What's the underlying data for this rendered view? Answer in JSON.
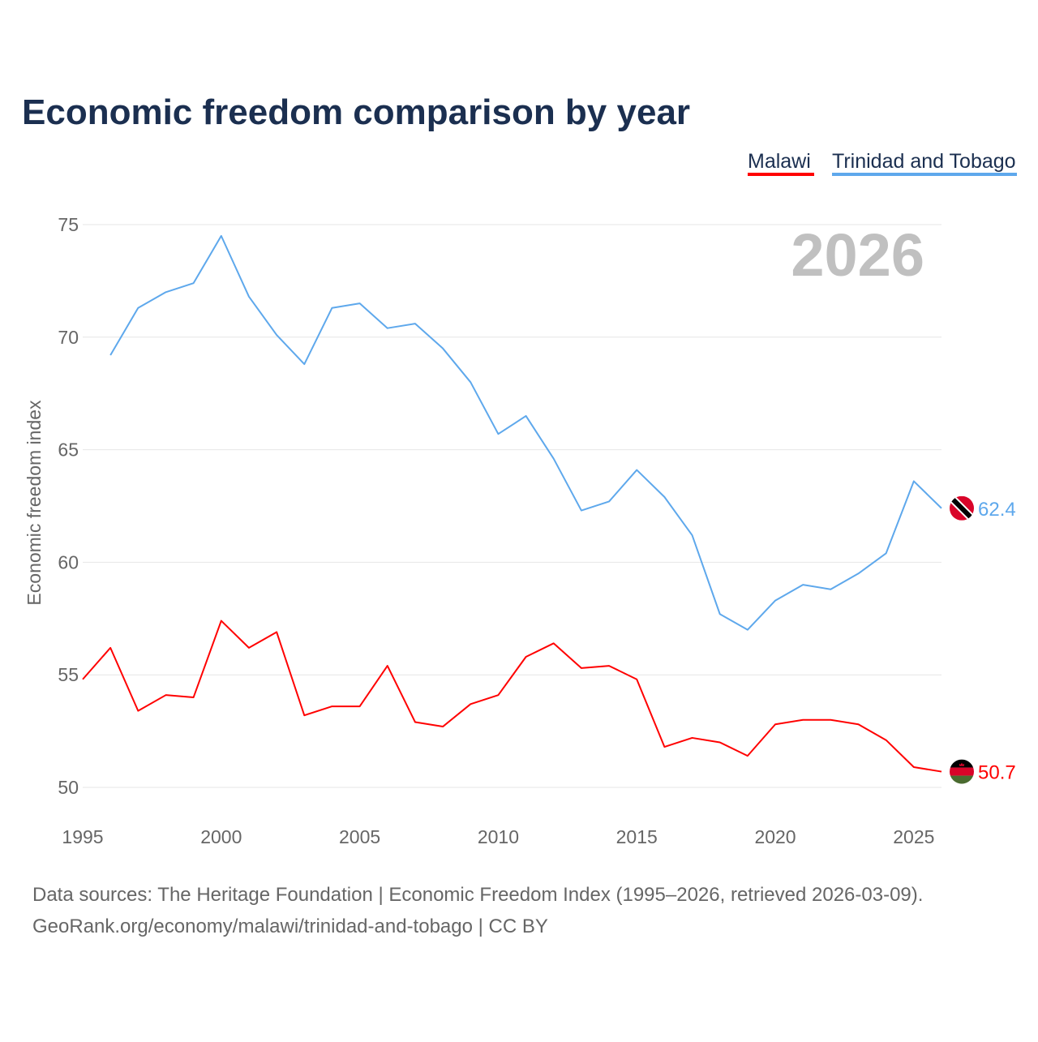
{
  "chart_data": {
    "type": "line",
    "title": "Economic freedom comparison by year",
    "ylabel": "Economic freedom index",
    "xlabel": "",
    "xlim": [
      1995,
      2026
    ],
    "ylim": [
      50,
      75
    ],
    "yticks": [
      50,
      55,
      60,
      65,
      70,
      75
    ],
    "xticks": [
      1995,
      2000,
      2005,
      2010,
      2015,
      2020,
      2025
    ],
    "grid": true,
    "legend_placement": "top-right",
    "year_watermark": "2026",
    "series": [
      {
        "name": "Malawi",
        "color": "#ff0000",
        "end_label": "50.7",
        "x": [
          1995,
          1996,
          1997,
          1998,
          1999,
          2000,
          2001,
          2002,
          2003,
          2004,
          2005,
          2006,
          2007,
          2008,
          2009,
          2010,
          2011,
          2012,
          2013,
          2014,
          2015,
          2016,
          2017,
          2018,
          2019,
          2020,
          2021,
          2022,
          2023,
          2024,
          2025,
          2026
        ],
        "values": [
          54.8,
          56.2,
          53.4,
          54.1,
          54.0,
          57.4,
          56.2,
          56.9,
          53.2,
          53.6,
          53.6,
          55.4,
          52.9,
          52.7,
          53.7,
          54.1,
          55.8,
          56.4,
          55.3,
          55.4,
          54.8,
          51.8,
          52.2,
          52.0,
          51.4,
          52.8,
          53.0,
          53.0,
          52.8,
          52.1,
          50.9,
          50.7
        ]
      },
      {
        "name": "Trinidad and Tobago",
        "color": "#5ea8ec",
        "end_label": "62.4",
        "x": [
          1996,
          1997,
          1998,
          1999,
          2000,
          2001,
          2002,
          2003,
          2004,
          2005,
          2006,
          2007,
          2008,
          2009,
          2010,
          2011,
          2012,
          2013,
          2014,
          2015,
          2016,
          2017,
          2018,
          2019,
          2020,
          2021,
          2022,
          2023,
          2024,
          2025,
          2026
        ],
        "values": [
          69.2,
          71.3,
          72.0,
          72.4,
          74.5,
          71.8,
          70.1,
          68.8,
          71.3,
          71.5,
          70.4,
          70.6,
          69.5,
          68.0,
          65.7,
          66.5,
          64.6,
          62.3,
          62.7,
          64.1,
          62.9,
          61.2,
          57.7,
          57.0,
          58.3,
          59.0,
          58.8,
          59.5,
          60.4,
          63.6,
          62.4
        ]
      }
    ]
  },
  "footer": {
    "line1": "Data sources: The Heritage Foundation | Economic Freedom Index (1995–2026, retrieved 2026-03-09).",
    "line2": "GeoRank.org/economy/malawi/trinidad-and-tobago | CC BY"
  },
  "colors": {
    "title": "#1b2f50",
    "axis_text": "#666666",
    "grid": "#e6e6e6",
    "watermark": "#c0c0c0"
  }
}
